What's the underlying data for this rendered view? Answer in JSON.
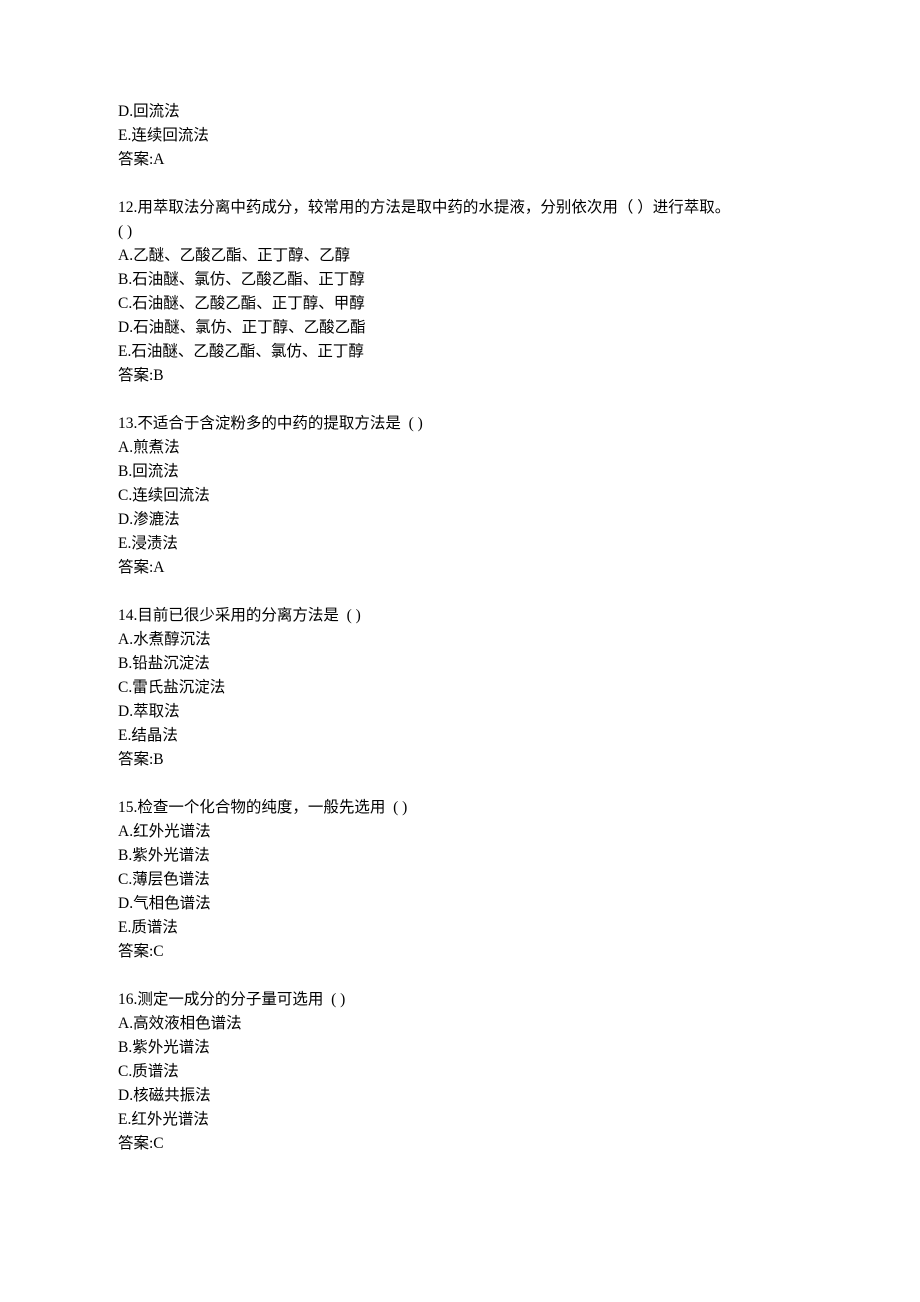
{
  "q11_tail": {
    "opt_d": "D.回流法",
    "opt_e": "E.连续回流法",
    "ans": "答案:A"
  },
  "q12": {
    "stem1": "12.用萃取法分离中药成分，较常用的方法是取中药的水提液，分别依次用（ ）进行萃取。",
    "stem2": "( )",
    "opt_a": "A.乙醚、乙酸乙酯、正丁醇、乙醇",
    "opt_b": "B.石油醚、氯仿、乙酸乙酯、正丁醇",
    "opt_c": "C.石油醚、乙酸乙酯、正丁醇、甲醇",
    "opt_d": "D.石油醚、氯仿、正丁醇、乙酸乙酯",
    "opt_e": "E.石油醚、乙酸乙酯、氯仿、正丁醇",
    "ans": "答案:B"
  },
  "q13": {
    "stem": "13.不适合于含淀粉多的中药的提取方法是  ( )",
    "opt_a": "A.煎煮法",
    "opt_b": "B.回流法",
    "opt_c": "C.连续回流法",
    "opt_d": "D.渗漉法",
    "opt_e": "E.浸渍法",
    "ans": "答案:A"
  },
  "q14": {
    "stem": "14.目前已很少采用的分离方法是  ( )",
    "opt_a": "A.水煮醇沉法",
    "opt_b": "B.铅盐沉淀法",
    "opt_c": "C.雷氏盐沉淀法",
    "opt_d": "D.萃取法",
    "opt_e": "E.结晶法",
    "ans": "答案:B"
  },
  "q15": {
    "stem": "15.检查一个化合物的纯度，一般先选用  ( )",
    "opt_a": "A.红外光谱法",
    "opt_b": "B.紫外光谱法",
    "opt_c": "C.薄层色谱法",
    "opt_d": "D.气相色谱法",
    "opt_e": "E.质谱法",
    "ans": "答案:C"
  },
  "q16": {
    "stem": "16.测定一成分的分子量可选用  ( )",
    "opt_a": "A.高效液相色谱法",
    "opt_b": "B.紫外光谱法",
    "opt_c": "C.质谱法",
    "opt_d": "D.核磁共振法",
    "opt_e": "E.红外光谱法",
    "ans": "答案:C"
  }
}
